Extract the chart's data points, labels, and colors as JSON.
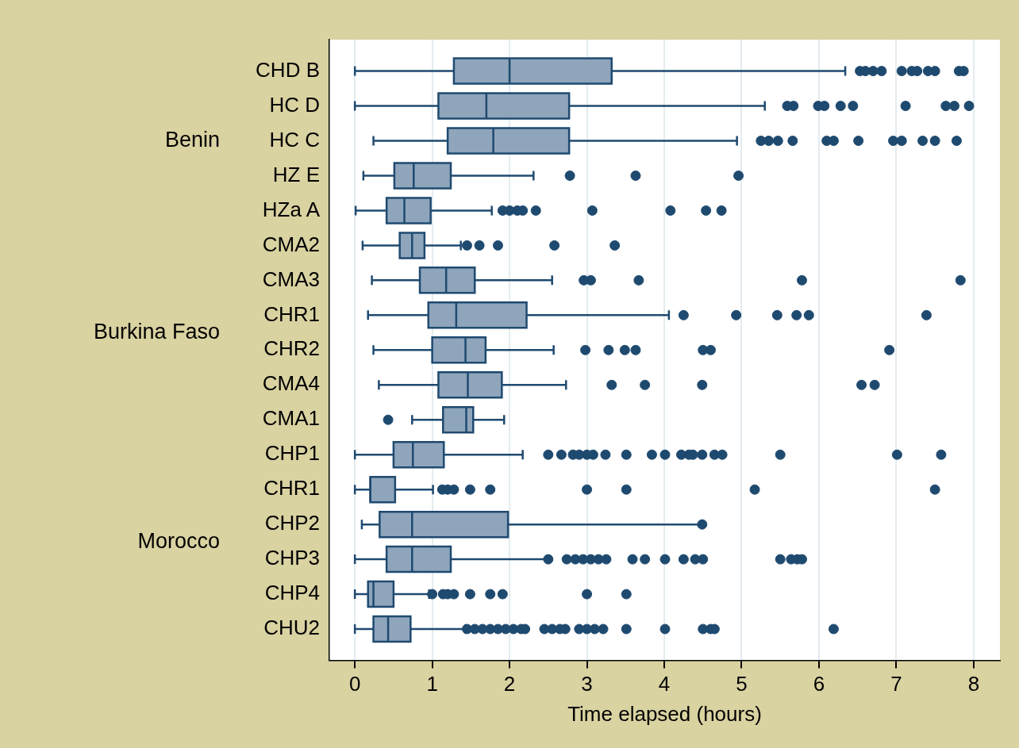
{
  "chart_data": {
    "type": "box",
    "orientation": "horizontal",
    "xlabel": "Time elapsed (hours)",
    "categories": [
      "CHD B",
      "HC D",
      "HC C",
      "HZ E",
      "HZa A",
      "CMA2",
      "CMA3",
      "CHR1",
      "CHR2",
      "CMA4",
      "CMA1",
      "CHP1",
      "CHR1",
      "CHP2",
      "CHP3",
      "CHP4",
      "CHU2"
    ],
    "boxes": [
      {
        "low": 0,
        "q1": 1.28,
        "median": 2.0,
        "q3": 3.32,
        "high": 6.34,
        "outliers": [
          6.53,
          6.6,
          6.7,
          6.81,
          7.07,
          7.2,
          7.27,
          7.41,
          7.5,
          7.81,
          7.87
        ]
      },
      {
        "low": 0,
        "q1": 1.08,
        "median": 1.7,
        "q3": 2.77,
        "high": 5.3,
        "outliers": [
          5.59,
          5.67,
          5.99,
          6.07,
          6.28,
          6.44,
          7.12,
          7.64,
          7.75,
          7.94
        ]
      },
      {
        "low": 0.24,
        "q1": 1.2,
        "median": 1.79,
        "q3": 2.77,
        "high": 4.94,
        "outliers": [
          5.25,
          5.35,
          5.47,
          5.66,
          6.1,
          6.19,
          6.51,
          6.96,
          7.07,
          7.34,
          7.5,
          7.78
        ]
      },
      {
        "low": 0.11,
        "q1": 0.51,
        "median": 0.76,
        "q3": 1.24,
        "high": 2.31,
        "outliers": [
          2.78,
          3.63,
          4.96
        ]
      },
      {
        "low": 0.01,
        "q1": 0.41,
        "median": 0.64,
        "q3": 0.98,
        "high": 1.77,
        "outliers": [
          1.91,
          2.0,
          2.1,
          2.17,
          2.34,
          3.07,
          4.08,
          4.54,
          4.74
        ]
      },
      {
        "low": 0.1,
        "q1": 0.58,
        "median": 0.74,
        "q3": 0.9,
        "high": 1.37,
        "outliers": [
          1.45,
          1.61,
          1.85,
          2.58,
          3.36
        ]
      },
      {
        "low": 0.22,
        "q1": 0.84,
        "median": 1.18,
        "q3": 1.55,
        "high": 2.55,
        "outliers": [
          2.96,
          3.05,
          3.67,
          5.78,
          7.83
        ]
      },
      {
        "low": 0.17,
        "q1": 0.95,
        "median": 1.31,
        "q3": 2.22,
        "high": 4.06,
        "outliers": [
          4.25,
          4.93,
          5.46,
          5.71,
          5.87,
          7.39
        ]
      },
      {
        "low": 0.24,
        "q1": 1.0,
        "median": 1.43,
        "q3": 1.69,
        "high": 2.57,
        "outliers": [
          2.98,
          3.28,
          3.49,
          3.63,
          4.5,
          4.6,
          6.91
        ]
      },
      {
        "low": 0.31,
        "q1": 1.08,
        "median": 1.46,
        "q3": 1.9,
        "high": 2.73,
        "outliers": [
          3.32,
          3.75,
          4.49,
          6.55,
          6.72
        ]
      },
      {
        "low": 0.74,
        "q1": 1.14,
        "median": 1.44,
        "q3": 1.53,
        "high": 1.93,
        "outliers": [
          0.43
        ]
      },
      {
        "low": 0,
        "q1": 0.5,
        "median": 0.75,
        "q3": 1.15,
        "high": 2.17,
        "outliers": [
          2.5,
          2.67,
          2.82,
          2.9,
          3.0,
          3.08,
          3.24,
          3.51,
          3.84,
          4.01,
          4.22,
          4.32,
          4.37,
          4.49,
          4.65,
          4.75,
          5.5,
          7.01,
          7.58
        ]
      },
      {
        "low": 0,
        "q1": 0.2,
        "median": 0.2,
        "q3": 0.52,
        "high": 1.01,
        "outliers": [
          1.13,
          1.2,
          1.28,
          1.49,
          1.75,
          3.0,
          3.51,
          5.17,
          7.5
        ]
      },
      {
        "low": 0.09,
        "q1": 0.32,
        "median": 0.74,
        "q3": 1.98,
        "high": 4.49,
        "outliers": [
          4.49
        ]
      },
      {
        "low": 0,
        "q1": 0.41,
        "median": 0.74,
        "q3": 1.24,
        "high": 2.5,
        "outliers": [
          2.5,
          2.74,
          2.85,
          2.95,
          3.05,
          3.15,
          3.25,
          3.59,
          3.75,
          4.01,
          4.25,
          4.4,
          4.5,
          5.5,
          5.64,
          5.72,
          5.78
        ]
      },
      {
        "low": 0,
        "q1": 0.17,
        "median": 0.24,
        "q3": 0.5,
        "high": 0.96,
        "outliers": [
          1.0,
          1.14,
          1.2,
          1.28,
          1.49,
          1.75,
          1.91,
          3.0,
          3.51
        ]
      },
      {
        "low": 0,
        "q1": 0.24,
        "median": 0.43,
        "q3": 0.72,
        "high": 1.43,
        "outliers": [
          1.45,
          1.55,
          1.65,
          1.75,
          1.85,
          1.95,
          2.05,
          2.15,
          2.2,
          2.45,
          2.55,
          2.65,
          2.72,
          2.9,
          3.0,
          3.1,
          3.21,
          3.51,
          4.01,
          4.5,
          4.6,
          4.65,
          6.19
        ]
      }
    ],
    "color": "#8fa5bb",
    "xlim": [
      -0.33,
      8.34
    ],
    "xticks": [
      0,
      1,
      2,
      3,
      4,
      5,
      6,
      7,
      8
    ],
    "grid": "x",
    "annotations": [
      "Benin",
      "Burkina Faso",
      "Morocco"
    ]
  }
}
